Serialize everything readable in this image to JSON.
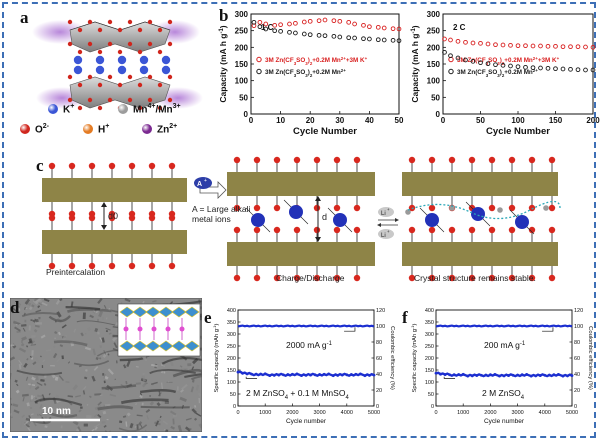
{
  "panels": {
    "a": {
      "label": "a",
      "legend": [
        {
          "name": "K+",
          "sym": "K",
          "sup": "+",
          "color": "#3b56d6"
        },
        {
          "name": "Mn4+/Mn3+",
          "sym": "Mn",
          "sup": "4+",
          "sym2": "/Mn",
          "sup2": "3+",
          "color": "#9c9c9c"
        },
        {
          "name": "O2-",
          "sym": "O",
          "sup": "2-",
          "color": "#d0261d"
        },
        {
          "name": "H+",
          "sym": "H",
          "sup": "+",
          "color": "#e47b23"
        },
        {
          "name": "Zn2+",
          "sym": "Zn",
          "sup": "2+",
          "color": "#7b2a91"
        }
      ]
    },
    "b": {
      "label": "b"
    },
    "c": {
      "label": "c",
      "ion_a": "A",
      "ion_a_sup": "+",
      "large_ion_text_1": "A = Large alkali",
      "large_ion_text_2": "metal ions",
      "d0": "d0",
      "d": "d",
      "li": "Li",
      "li_sup": "+",
      "step1": "Preintercalation",
      "step2": "Charge/Discharge",
      "step3": "Crystal structure remains stable."
    },
    "d": {
      "label": "d",
      "scalebar": "10 nm"
    },
    "e": {
      "label": "e",
      "rate": "2000 mA g",
      "rate_sup": "-1",
      "electrolyte_a": "2 M ZnSO",
      "electrolyte_sub": "4",
      "electrolyte_b": " + 0.1 M MnSO",
      "electrolyte_sub2": "4"
    },
    "f": {
      "label": "f",
      "rate": "200 mA g",
      "rate_sup": "-1",
      "electrolyte_a": "2 M ZnSO",
      "electrolyte_sub": "4"
    }
  },
  "chart_data": [
    {
      "id": "b-1C",
      "type": "scatter",
      "title": "1 C",
      "xlabel": "Cycle Number",
      "ylabel": "Capacity (mA h g",
      "ylabel_sup": "-1",
      "ylabel_end": ")",
      "xlim": [
        0,
        50
      ],
      "ylim": [
        0,
        300
      ],
      "xticks": [
        0,
        10,
        20,
        30,
        40,
        50
      ],
      "yticks": [
        0,
        50,
        100,
        150,
        200,
        250,
        300
      ],
      "series": [
        {
          "name": "3M Zn(CF3SO3)2+0.2M Mn2++3M K+",
          "legend_parts": [
            "3M Zn(CF",
            "3",
            "SO",
            "3",
            ")",
            "2",
            "+0.2M Mn",
            "2+",
            "+3M K",
            "+"
          ],
          "color": "#d81e1e",
          "x": [
            1,
            3,
            5,
            8,
            10,
            13,
            15,
            18,
            20,
            23,
            25,
            28,
            30,
            33,
            35,
            38,
            40,
            43,
            45,
            48,
            50
          ],
          "values": [
            265,
            275,
            270,
            266,
            268,
            270,
            272,
            276,
            278,
            280,
            282,
            280,
            278,
            275,
            270,
            266,
            262,
            260,
            258,
            256,
            255
          ]
        },
        {
          "name": "3M Zn(CF3SO3)2+0.2M Mn2+",
          "legend_parts": [
            "3M Zn(CF",
            "3",
            "SO",
            "3",
            ")",
            "2",
            "+0.2M Mn",
            "2+"
          ],
          "color": "#1a1a1a",
          "x": [
            1,
            3,
            5,
            8,
            10,
            13,
            15,
            18,
            20,
            23,
            25,
            28,
            30,
            33,
            35,
            38,
            40,
            43,
            45,
            48,
            50
          ],
          "values": [
            275,
            262,
            255,
            250,
            248,
            245,
            243,
            240,
            238,
            236,
            235,
            233,
            231,
            229,
            228,
            226,
            225,
            223,
            222,
            221,
            220
          ]
        }
      ]
    },
    {
      "id": "b-2C",
      "type": "scatter",
      "title": "2 C",
      "xlabel": "Cycle Number",
      "ylabel": "Capacity (mA h g",
      "ylabel_sup": "-1",
      "ylabel_end": ")",
      "xlim": [
        0,
        200
      ],
      "ylim": [
        0,
        300
      ],
      "xticks": [
        0,
        50,
        100,
        150,
        200
      ],
      "yticks": [
        0,
        50,
        100,
        150,
        200,
        250,
        300
      ],
      "series": [
        {
          "name": "3M Zn(CF3SO3)2+0.2M Mn2++3M K+",
          "legend_parts": [
            "3M Zn(CF",
            "3",
            "SO",
            "3",
            ")",
            "2",
            "+0.2M Mn",
            "2+",
            "+3M K",
            "+"
          ],
          "color": "#d81e1e",
          "x": [
            2,
            10,
            20,
            30,
            40,
            50,
            60,
            70,
            80,
            90,
            100,
            110,
            120,
            130,
            140,
            150,
            160,
            170,
            180,
            190,
            200
          ],
          "values": [
            225,
            222,
            218,
            215,
            213,
            212,
            210,
            208,
            207,
            206,
            205,
            205,
            204,
            204,
            203,
            203,
            202,
            202,
            202,
            201,
            200
          ]
        },
        {
          "name": "3M Zn(CF3SO3)2+0.2M Mn2+",
          "legend_parts": [
            "3M Zn(CF",
            "3",
            "SO",
            "3",
            ")",
            "2",
            "+0.2M Mn",
            "2+"
          ],
          "color": "#1a1a1a",
          "x": [
            2,
            10,
            20,
            30,
            40,
            50,
            60,
            70,
            80,
            90,
            100,
            110,
            120,
            130,
            140,
            150,
            160,
            170,
            180,
            190,
            200
          ],
          "values": [
            185,
            175,
            168,
            162,
            158,
            154,
            151,
            148,
            146,
            144,
            142,
            140,
            139,
            138,
            137,
            136,
            135,
            134,
            133,
            132,
            132
          ]
        }
      ]
    },
    {
      "id": "e",
      "type": "scatter",
      "xlabel": "Cycle number",
      "ylabel": "Specific capacity (mAh g",
      "ylabel_sup": "-1",
      "ylabel_end": ")",
      "y2label": "Coulombic efficiency (%)",
      "xlim": [
        0,
        5000
      ],
      "ylim": [
        0,
        400
      ],
      "y2lim": [
        0,
        120
      ],
      "xticks": [
        0,
        1000,
        2000,
        3000,
        4000,
        5000
      ],
      "yticks": [
        0,
        50,
        100,
        150,
        200,
        250,
        300,
        350,
        400
      ],
      "y2ticks": [
        0,
        20,
        40,
        60,
        80,
        100,
        120
      ],
      "capacity_start": 145,
      "capacity_plateau": 130,
      "efficiency": 100
    },
    {
      "id": "f",
      "type": "scatter",
      "xlabel": "Cycle number",
      "ylabel": "Specific capacity (mAh g",
      "ylabel_sup": "-1",
      "ylabel_end": ")",
      "y2label": "Coulombic efficiency (%)",
      "xlim": [
        0,
        5000
      ],
      "ylim": [
        0,
        400
      ],
      "y2lim": [
        0,
        120
      ],
      "xticks": [
        0,
        1000,
        2000,
        3000,
        4000,
        5000
      ],
      "yticks": [
        0,
        50,
        100,
        150,
        200,
        250,
        300,
        350,
        400
      ],
      "y2ticks": [
        0,
        20,
        40,
        60,
        80,
        100,
        120
      ],
      "capacity_start": 140,
      "capacity_plateau": 128,
      "efficiency": 100
    }
  ]
}
